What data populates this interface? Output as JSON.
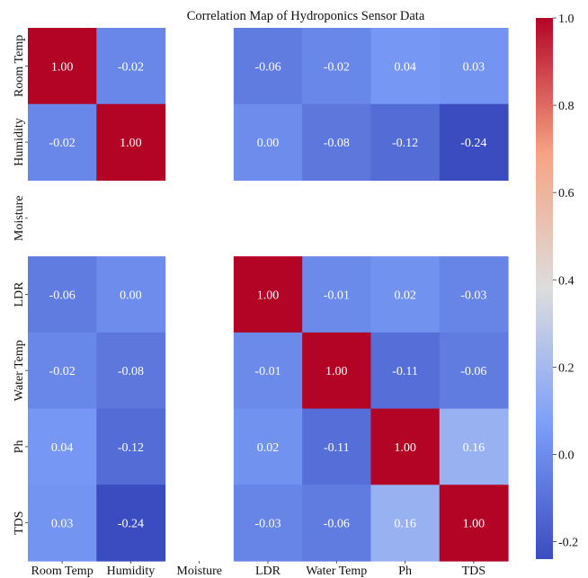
{
  "chart_data": {
    "type": "heatmap",
    "title": "Correlation Map of Hydroponics Sensor Data",
    "xlabel": "",
    "ylabel": "",
    "categories": [
      "Room Temp",
      "Humidity",
      "Moisture",
      "LDR",
      "Water Temp",
      "Ph",
      "TDS"
    ],
    "values": [
      [
        1.0,
        -0.02,
        null,
        -0.06,
        -0.02,
        0.04,
        0.03
      ],
      [
        -0.02,
        1.0,
        null,
        -0.0,
        -0.08,
        -0.12,
        -0.24
      ],
      [
        null,
        null,
        null,
        null,
        null,
        null,
        null
      ],
      [
        -0.06,
        -0.0,
        null,
        1.0,
        -0.01,
        0.02,
        -0.03
      ],
      [
        -0.02,
        -0.08,
        null,
        -0.01,
        1.0,
        -0.11,
        -0.06
      ],
      [
        0.04,
        -0.12,
        null,
        0.02,
        -0.11,
        1.0,
        0.16
      ],
      [
        0.03,
        -0.24,
        null,
        -0.03,
        -0.06,
        0.16,
        1.0
      ]
    ],
    "colorbar": {
      "ticks": [
        "1.0",
        "0.8",
        "0.6",
        "0.4",
        "0.2",
        "0.0",
        "-0.2"
      ],
      "tick_values": [
        1.0,
        0.8,
        0.6,
        0.4,
        0.2,
        0.0,
        -0.2
      ],
      "range": [
        -0.24,
        1.0
      ]
    },
    "colormap": "coolwarm",
    "colors": {
      "low": "#3b4cc0",
      "mid": "#dddddd",
      "high": "#b40426"
    },
    "grid": false,
    "legend": "right"
  }
}
